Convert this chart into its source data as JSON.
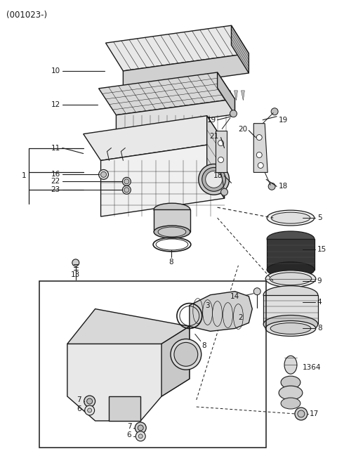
{
  "title": "(001023-)",
  "bg_color": "#ffffff",
  "line_color": "#1a1a1a",
  "font_size": 7.5,
  "title_font_size": 8.5
}
